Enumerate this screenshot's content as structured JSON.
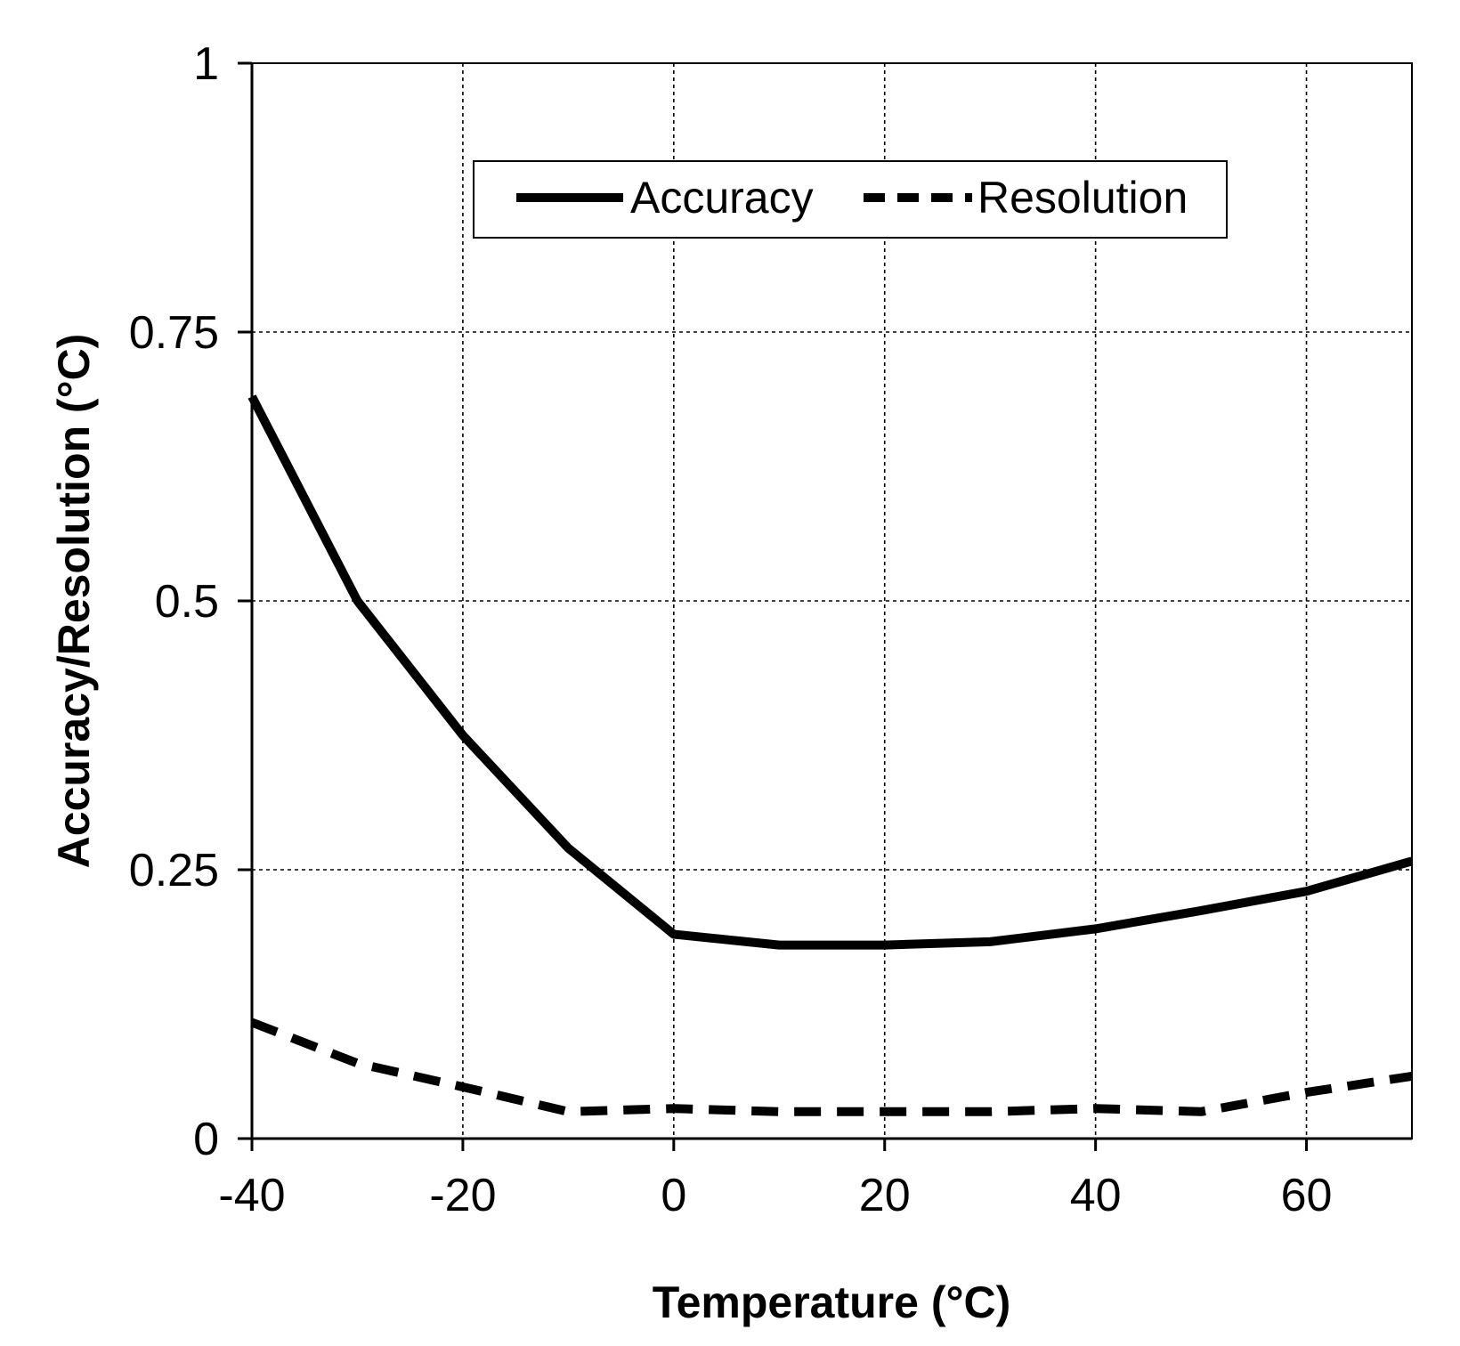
{
  "chart_data": {
    "type": "line",
    "xlabel": "Temperature  (°C)",
    "ylabel": "Accuracy/Resolution  (°C)",
    "xlim": [
      -40,
      70
    ],
    "ylim": [
      0,
      1
    ],
    "x_ticks": [
      -40,
      -20,
      0,
      20,
      40,
      60
    ],
    "x_tick_labels": [
      "-40",
      "-20",
      "0",
      "20",
      "40",
      "60"
    ],
    "y_ticks": [
      0,
      0.25,
      0.5,
      0.75,
      1
    ],
    "y_tick_labels": [
      "0",
      "0.25",
      "0.5",
      "0.75",
      "1"
    ],
    "grid": true,
    "legend_position": "top-center",
    "series": [
      {
        "name": "Accuracy",
        "style": "solid",
        "color": "#000000",
        "x": [
          -40,
          -30,
          -20,
          -10,
          0,
          10,
          20,
          30,
          40,
          50,
          60,
          70
        ],
        "values": [
          0.69,
          0.5,
          0.375,
          0.27,
          0.19,
          0.18,
          0.18,
          0.183,
          0.195,
          0.212,
          0.23,
          0.258
        ]
      },
      {
        "name": "Resolution",
        "style": "dashed",
        "color": "#000000",
        "x": [
          -40,
          -30,
          -20,
          -10,
          0,
          10,
          20,
          30,
          40,
          50,
          60,
          70
        ],
        "values": [
          0.108,
          0.07,
          0.048,
          0.025,
          0.028,
          0.025,
          0.025,
          0.025,
          0.028,
          0.025,
          0.043,
          0.058
        ]
      }
    ]
  }
}
